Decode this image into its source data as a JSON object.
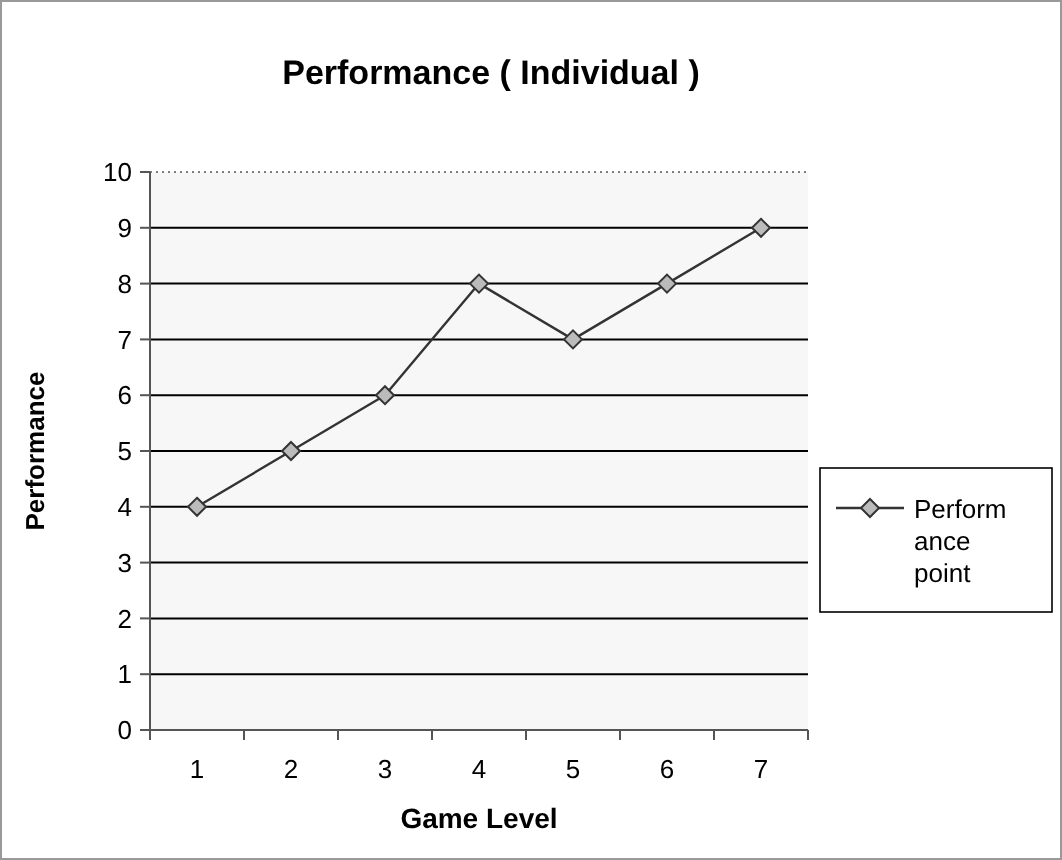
{
  "chart_data": {
    "type": "line",
    "title": "Performance ( Individual )",
    "xlabel": "Game Level",
    "ylabel": "Performance",
    "categories": [
      "1",
      "2",
      "3",
      "4",
      "5",
      "6",
      "7"
    ],
    "series": [
      {
        "name": "Performance point",
        "color": "#333333",
        "values": [
          4,
          5,
          6,
          8,
          7,
          8,
          9
        ]
      }
    ],
    "ylim": [
      0,
      10
    ],
    "yticks": [
      0,
      1,
      2,
      3,
      4,
      5,
      6,
      7,
      8,
      9,
      10
    ],
    "grid": "y",
    "legend": "right",
    "marker": "diamond",
    "line_style": "solid"
  }
}
